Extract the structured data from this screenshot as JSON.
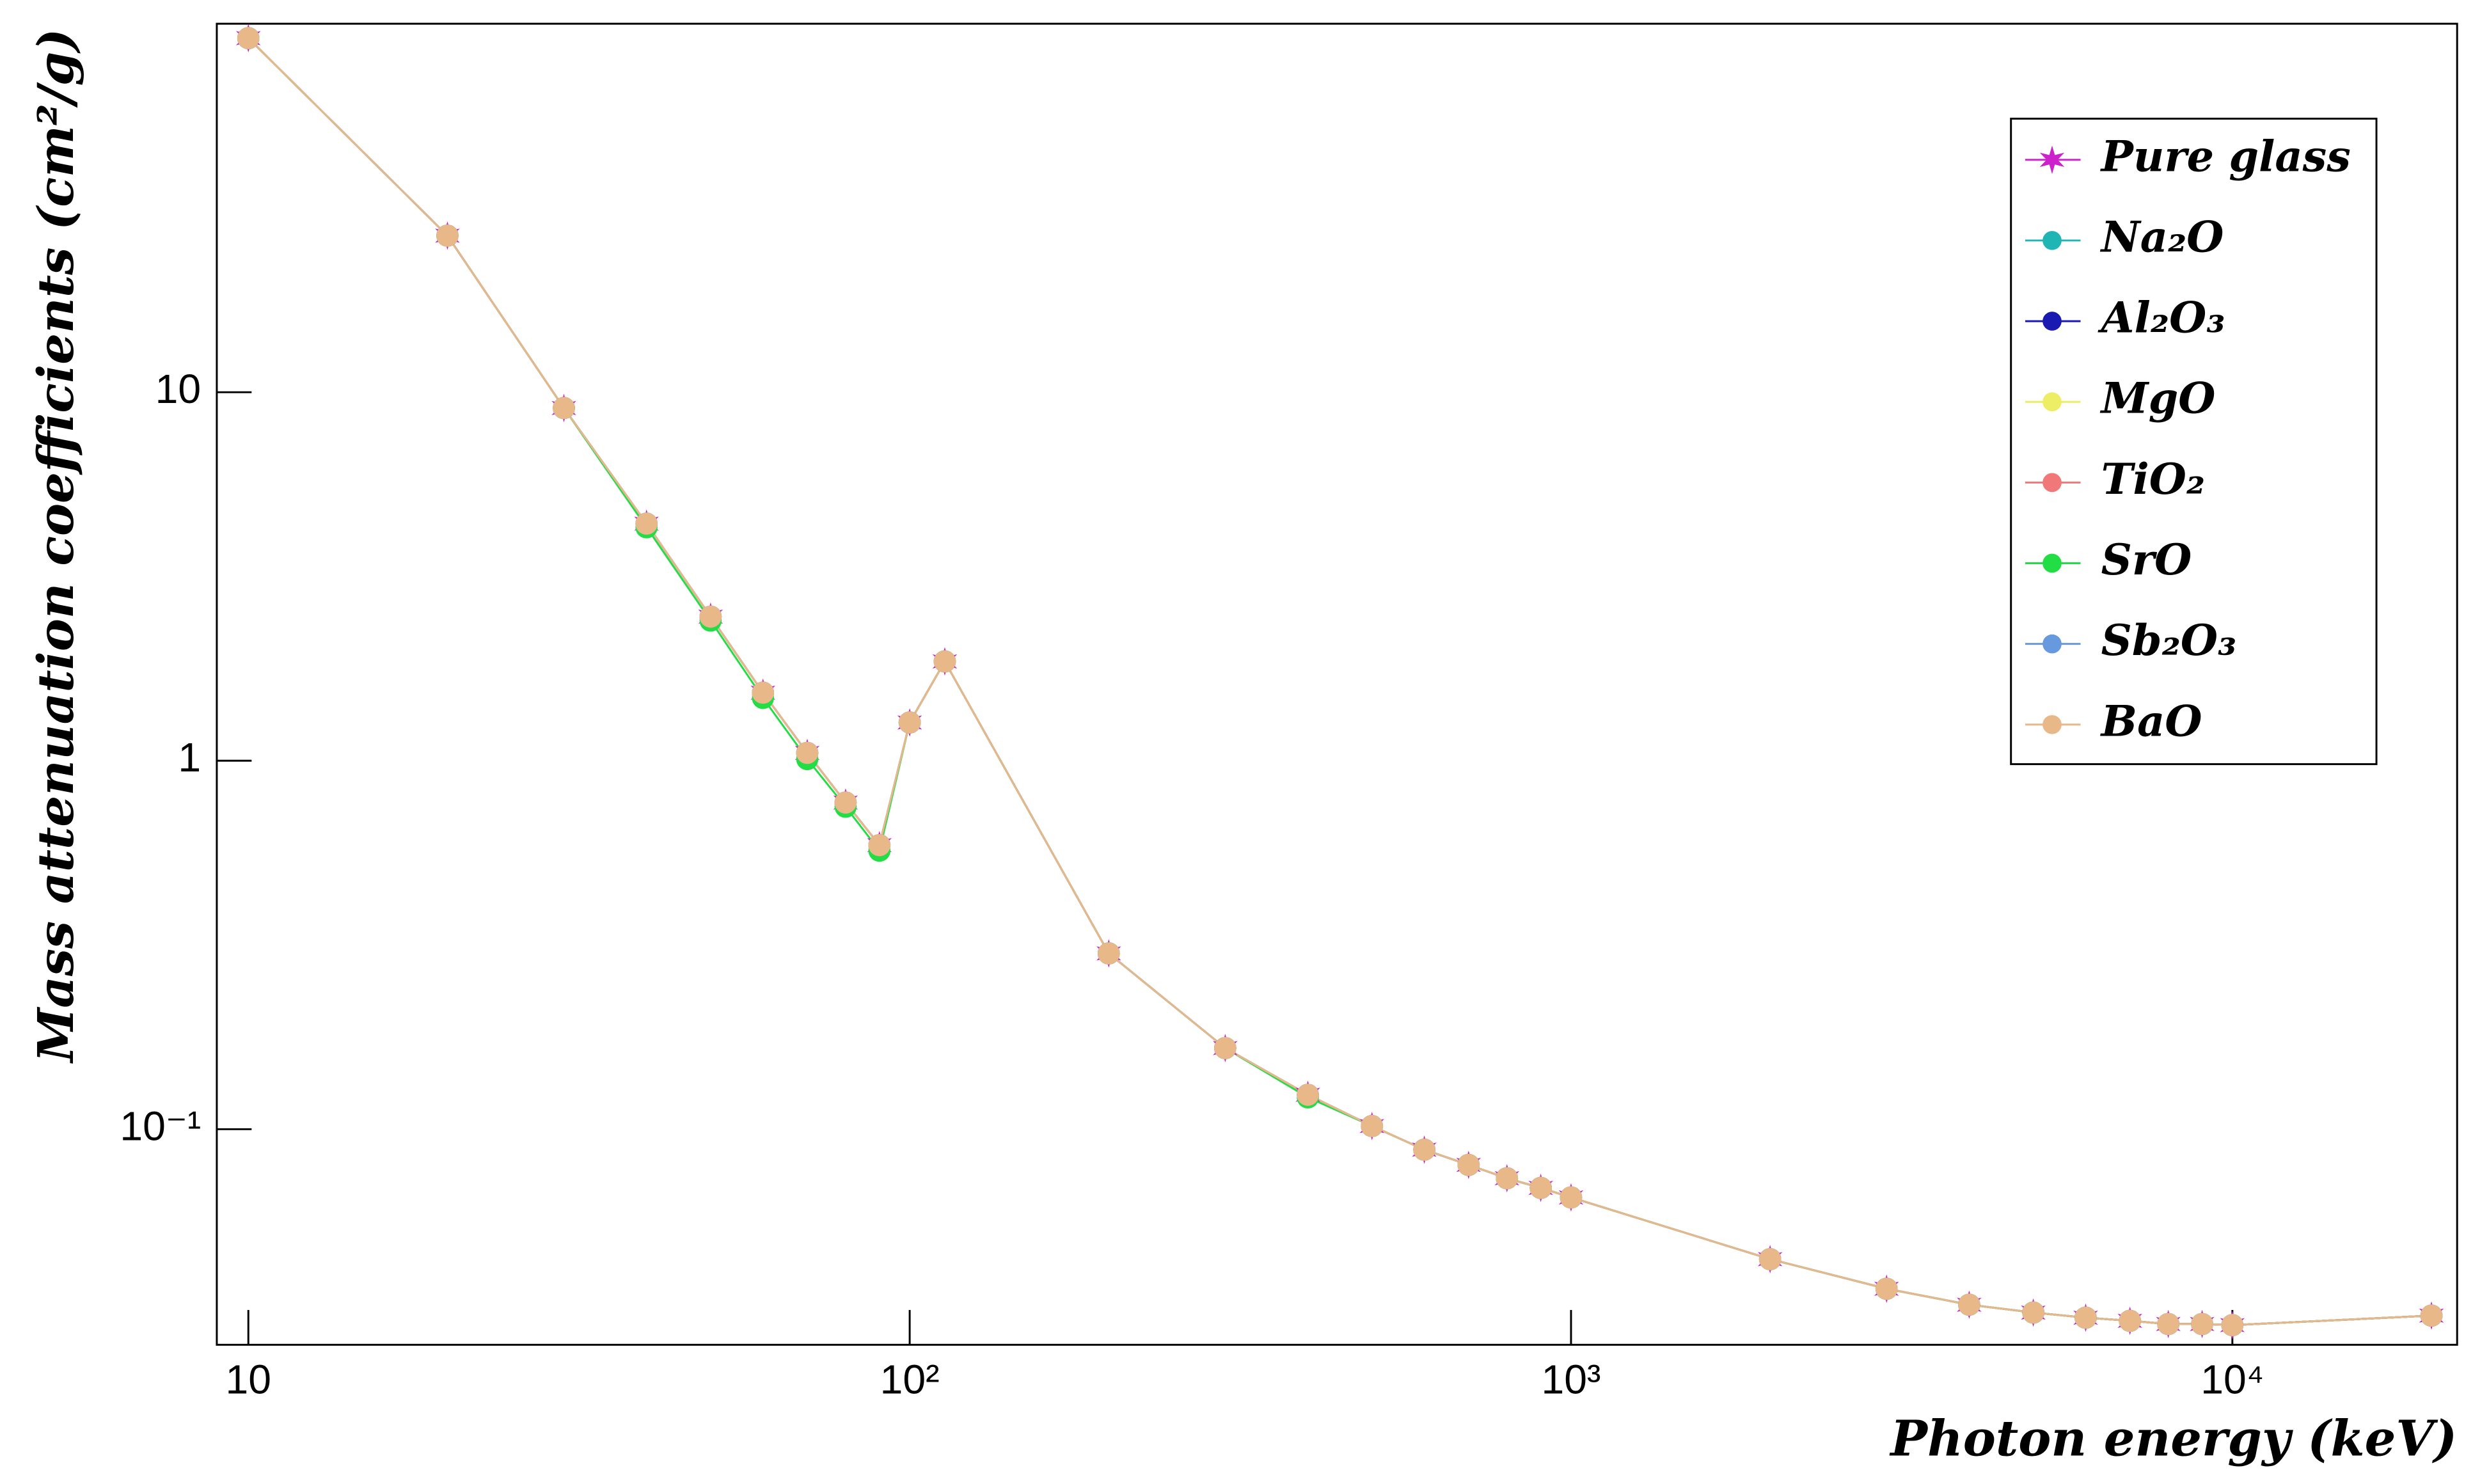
{
  "chart_data": {
    "type": "line",
    "x_label": "Photon energy (keV)",
    "y_label": "Mass attenuation coefficients (cm²/g)",
    "x": [
      10,
      20,
      30,
      40,
      50,
      60,
      70,
      80,
      90,
      100,
      113,
      200,
      300,
      400,
      500,
      600,
      700,
      800,
      900,
      1000,
      2000,
      3000,
      4000,
      5000,
      6000,
      7000,
      8000,
      9000,
      10000,
      20000
    ],
    "xlim": [
      8.96,
      21870
    ],
    "ylim": [
      0.026,
      100
    ],
    "xticks": [
      10,
      {
        "value": 100,
        "label": "10²"
      },
      {
        "value": 1000,
        "label": "10³"
      },
      {
        "value": 10000,
        "label": "10⁴"
      }
    ],
    "yticks": [
      {
        "value": 0.1,
        "label": "10⁻¹"
      },
      1,
      10
    ],
    "log_x": true,
    "log_y": true,
    "grid": false,
    "legend": "upper right",
    "series": [
      {
        "name": "Pure glass",
        "color": "#cc22cc",
        "marker": "star",
        "values": [
          91.4,
          26.6,
          9.06,
          4.4,
          2.46,
          1.53,
          1.05,
          0.77,
          0.59,
          1.27,
          1.86,
          0.3,
          0.166,
          0.124,
          0.102,
          0.088,
          0.08,
          0.0736,
          0.0693,
          0.0653,
          0.0444,
          0.0369,
          0.0334,
          0.0318,
          0.0308,
          0.0302,
          0.0296,
          0.0296,
          0.0294,
          0.0312
        ]
      },
      {
        "name": "Na₂O",
        "color": "#1fb5b5",
        "marker": "circle",
        "values": [
          91.4,
          26.6,
          9.06,
          4.4,
          2.46,
          1.53,
          1.05,
          0.77,
          0.59,
          1.27,
          1.86,
          0.3,
          0.166,
          0.124,
          0.102,
          0.088,
          0.08,
          0.0736,
          0.0693,
          0.0653,
          0.0444,
          0.0369,
          0.0334,
          0.0318,
          0.0308,
          0.0302,
          0.0296,
          0.0296,
          0.0294,
          0.0312
        ]
      },
      {
        "name": "Al₂O₃",
        "color": "#1a1ab3",
        "marker": "circle",
        "values": [
          91.4,
          26.6,
          9.06,
          4.4,
          2.46,
          1.53,
          1.05,
          0.77,
          0.59,
          1.27,
          1.86,
          0.3,
          0.166,
          0.124,
          0.102,
          0.088,
          0.08,
          0.0736,
          0.0693,
          0.0653,
          0.0444,
          0.0369,
          0.0334,
          0.0318,
          0.0308,
          0.0302,
          0.0296,
          0.0296,
          0.0294,
          0.0312
        ]
      },
      {
        "name": "MgO",
        "color": "#eeee66",
        "marker": "circle",
        "values": [
          91.4,
          26.6,
          9.06,
          4.4,
          2.46,
          1.53,
          1.05,
          0.77,
          0.59,
          1.27,
          1.86,
          0.3,
          0.166,
          0.124,
          0.102,
          0.088,
          0.08,
          0.0736,
          0.0693,
          0.0653,
          0.0444,
          0.0369,
          0.0334,
          0.0318,
          0.0308,
          0.0302,
          0.0296,
          0.0296,
          0.0294,
          0.0312
        ]
      },
      {
        "name": "TiO₂",
        "color": "#f07878",
        "marker": "circle",
        "values": [
          91.4,
          26.6,
          9.06,
          4.4,
          2.46,
          1.53,
          1.05,
          0.77,
          0.59,
          1.27,
          1.86,
          0.3,
          0.166,
          0.124,
          0.102,
          0.088,
          0.08,
          0.0736,
          0.0693,
          0.0653,
          0.0444,
          0.0369,
          0.0334,
          0.0318,
          0.0308,
          0.0302,
          0.0296,
          0.0296,
          0.0294,
          0.0312
        ]
      },
      {
        "name": "SrO",
        "color": "#22dd44",
        "marker": "circle",
        "values": [
          91.4,
          26.6,
          9.06,
          4.3,
          2.4,
          1.48,
          1.01,
          0.75,
          0.57,
          1.27,
          1.86,
          0.3,
          0.166,
          0.122,
          0.102,
          0.088,
          0.08,
          0.0736,
          0.0693,
          0.0653,
          0.0444,
          0.0369,
          0.0334,
          0.0318,
          0.0308,
          0.0302,
          0.0296,
          0.0296,
          0.0294,
          0.0312
        ]
      },
      {
        "name": "Sb₂O₃",
        "color": "#6699dd",
        "marker": "circle",
        "values": [
          91.4,
          26.6,
          9.06,
          4.4,
          2.46,
          1.53,
          1.05,
          0.77,
          0.59,
          1.27,
          1.86,
          0.3,
          0.166,
          0.124,
          0.102,
          0.088,
          0.08,
          0.0736,
          0.0693,
          0.0653,
          0.0444,
          0.0369,
          0.0334,
          0.0318,
          0.0308,
          0.0302,
          0.0296,
          0.0296,
          0.0294,
          0.0312
        ]
      },
      {
        "name": "BaO",
        "color": "#e8b888",
        "marker": "circle",
        "values": [
          91.4,
          26.6,
          9.06,
          4.4,
          2.46,
          1.53,
          1.05,
          0.77,
          0.59,
          1.27,
          1.86,
          0.3,
          0.166,
          0.124,
          0.102,
          0.088,
          0.08,
          0.0736,
          0.0693,
          0.0653,
          0.0444,
          0.0369,
          0.0334,
          0.0318,
          0.0308,
          0.0302,
          0.0296,
          0.0296,
          0.0294,
          0.0312
        ]
      }
    ]
  }
}
